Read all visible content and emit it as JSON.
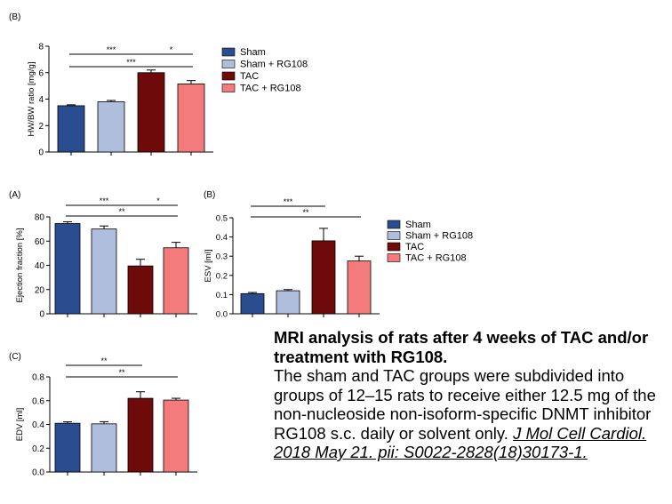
{
  "caption": {
    "title": "MRI analysis of rats after 4 weeks of TAC and/or treatment with RG108.",
    "body": "The sham and TAC groups were subdivided into groups of 12–15 rats to receive either 12.5 mg of the non-nucleoside non-isoform-specific DNMT inhibitor RG108 s.c. daily or solvent only. ",
    "citation": "J Mol Cell Cardiol. 2018 May 21. pii: S0022-2828(18)30173-1."
  },
  "legend": {
    "labels": [
      "Sham",
      "Sham + RG108",
      "TAC",
      "TAC + RG108"
    ],
    "colors": [
      "#2a4d8f",
      "#b0bedd",
      "#6e0a0a",
      "#f47b7b"
    ]
  },
  "chart_data": [
    {
      "type": "bar",
      "panel": "(B)",
      "ylabel": "HW/BW ratio [mg/g]",
      "ylim": [
        0,
        8
      ],
      "yticks": [
        "0",
        "2",
        "4",
        "6",
        "8"
      ],
      "categories": [
        "Sham",
        "Sham + RG108",
        "TAC",
        "TAC + RG108"
      ],
      "values": [
        3.5,
        3.8,
        6.0,
        5.15
      ],
      "errors": [
        0.07,
        0.1,
        0.2,
        0.25
      ],
      "significance": [
        {
          "from": 0,
          "to": 2,
          "label": "***"
        },
        {
          "from": 2,
          "to": 3,
          "label": "*"
        },
        {
          "from": 0,
          "to": 3,
          "label": "***"
        }
      ]
    },
    {
      "type": "bar",
      "panel": "(A)",
      "ylabel": "Ejection fraction [%]",
      "ylim": [
        0,
        80
      ],
      "yticks": [
        "0",
        "20",
        "40",
        "60",
        "80"
      ],
      "categories": [
        "Sham",
        "Sham + RG108",
        "TAC",
        "TAC + RG108"
      ],
      "values": [
        74.5,
        70,
        39.5,
        54.5
      ],
      "errors": [
        1.5,
        2.5,
        5.5,
        4.5
      ],
      "significance": [
        {
          "from": 0,
          "to": 2,
          "label": "***"
        },
        {
          "from": 2,
          "to": 3,
          "label": "*"
        },
        {
          "from": 0,
          "to": 3,
          "label": "**"
        }
      ]
    },
    {
      "type": "bar",
      "panel": "(B)",
      "ylabel": "ESV [ml]",
      "ylim": [
        0,
        0.5
      ],
      "yticks": [
        "0.0",
        "0.1",
        "0.2",
        "0.3",
        "0.4",
        "0.5"
      ],
      "categories": [
        "Sham",
        "Sham + RG108",
        "TAC",
        "TAC + RG108"
      ],
      "values": [
        0.105,
        0.12,
        0.38,
        0.275
      ],
      "errors": [
        0.006,
        0.006,
        0.065,
        0.025
      ],
      "significance": [
        {
          "from": 0,
          "to": 2,
          "label": "***"
        },
        {
          "from": 0,
          "to": 3,
          "label": "**"
        }
      ]
    },
    {
      "type": "bar",
      "panel": "(C)",
      "ylabel": "EDV [ml]",
      "ylim": [
        0,
        0.8
      ],
      "yticks": [
        "0.0",
        "0.2",
        "0.4",
        "0.6",
        "0.8"
      ],
      "categories": [
        "Sham",
        "Sham + RG108",
        "TAC",
        "TAC + RG108"
      ],
      "values": [
        0.41,
        0.405,
        0.62,
        0.605
      ],
      "errors": [
        0.012,
        0.018,
        0.055,
        0.015
      ],
      "significance": [
        {
          "from": 0,
          "to": 2,
          "label": "**"
        },
        {
          "from": 0,
          "to": 3,
          "label": "**"
        }
      ]
    }
  ]
}
